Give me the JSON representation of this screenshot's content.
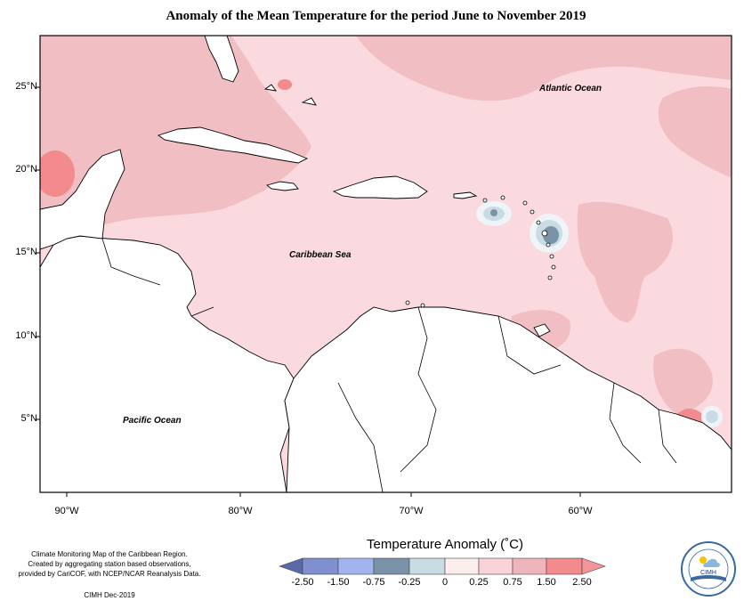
{
  "title": "Anomaly of the Mean Temperature for the period June to November 2019",
  "map": {
    "lat_ticks": [
      "25°N",
      "20°N",
      "15°N",
      "10°N",
      "5°N"
    ],
    "lon_ticks": [
      "90°W",
      "80°W",
      "70°W",
      "60°W"
    ],
    "labels": {
      "atlantic": "Atlantic Ocean",
      "caribbean": "Caribbean Sea",
      "pacific": "Pacific Ocean"
    }
  },
  "credit": {
    "line1": "Climate Monitoring Map of the Caribbean Region.",
    "line2": "Created by aggregating station based observations,",
    "line3": "provided by CariCOF, with NCEP/NCAR Reanalysis Data.",
    "date": "CIMH Dec-2019"
  },
  "legend": {
    "title": "Temperature Anomaly (˚C)",
    "labels": [
      "-2.50",
      "-1.50",
      "-0.75",
      "-0.25",
      "0",
      "0.25",
      "0.75",
      "1.50",
      "2.50"
    ],
    "colors": [
      "#5a6aa8",
      "#7f8fcf",
      "#a3b3f0",
      "#7a92a8",
      "#c9dbe3",
      "#fdeeee",
      "#f9d3d8",
      "#eeb6bc",
      "#f28a8e",
      "#f3939a"
    ]
  },
  "logo": {
    "text": "CIMH"
  }
}
